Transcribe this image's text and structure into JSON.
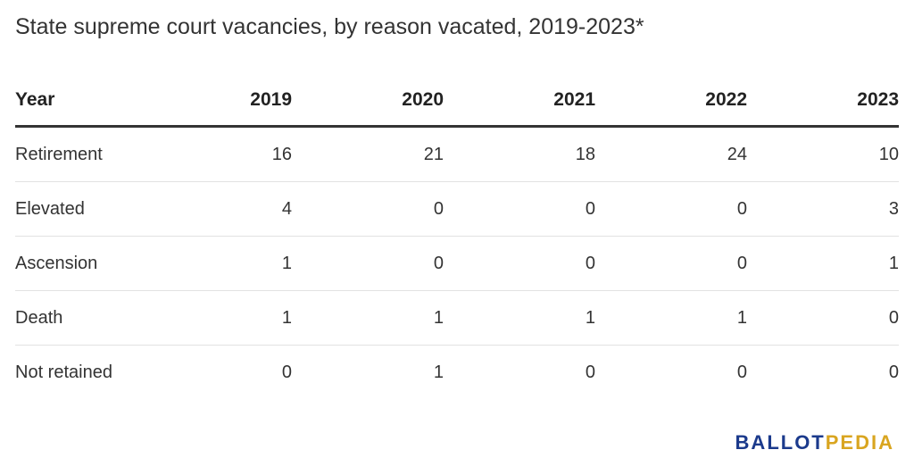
{
  "chart_data": {
    "type": "table",
    "title": "State supreme court vacancies, by reason vacated, 2019-2023*",
    "columns": [
      "Year",
      "2019",
      "2020",
      "2021",
      "2022",
      "2023"
    ],
    "rows": [
      {
        "label": "Retirement",
        "values": [
          "16",
          "21",
          "18",
          "24",
          "10"
        ]
      },
      {
        "label": "Elevated",
        "values": [
          "4",
          "0",
          "0",
          "0",
          "3"
        ]
      },
      {
        "label": "Ascension",
        "values": [
          "1",
          "0",
          "0",
          "0",
          "1"
        ]
      },
      {
        "label": "Death",
        "values": [
          "1",
          "1",
          "1",
          "1",
          "0"
        ]
      },
      {
        "label": "Not retained",
        "values": [
          "0",
          "1",
          "0",
          "0",
          "0"
        ]
      }
    ]
  },
  "logo": {
    "part1": "BALLOT",
    "part2": "PEDIA"
  }
}
